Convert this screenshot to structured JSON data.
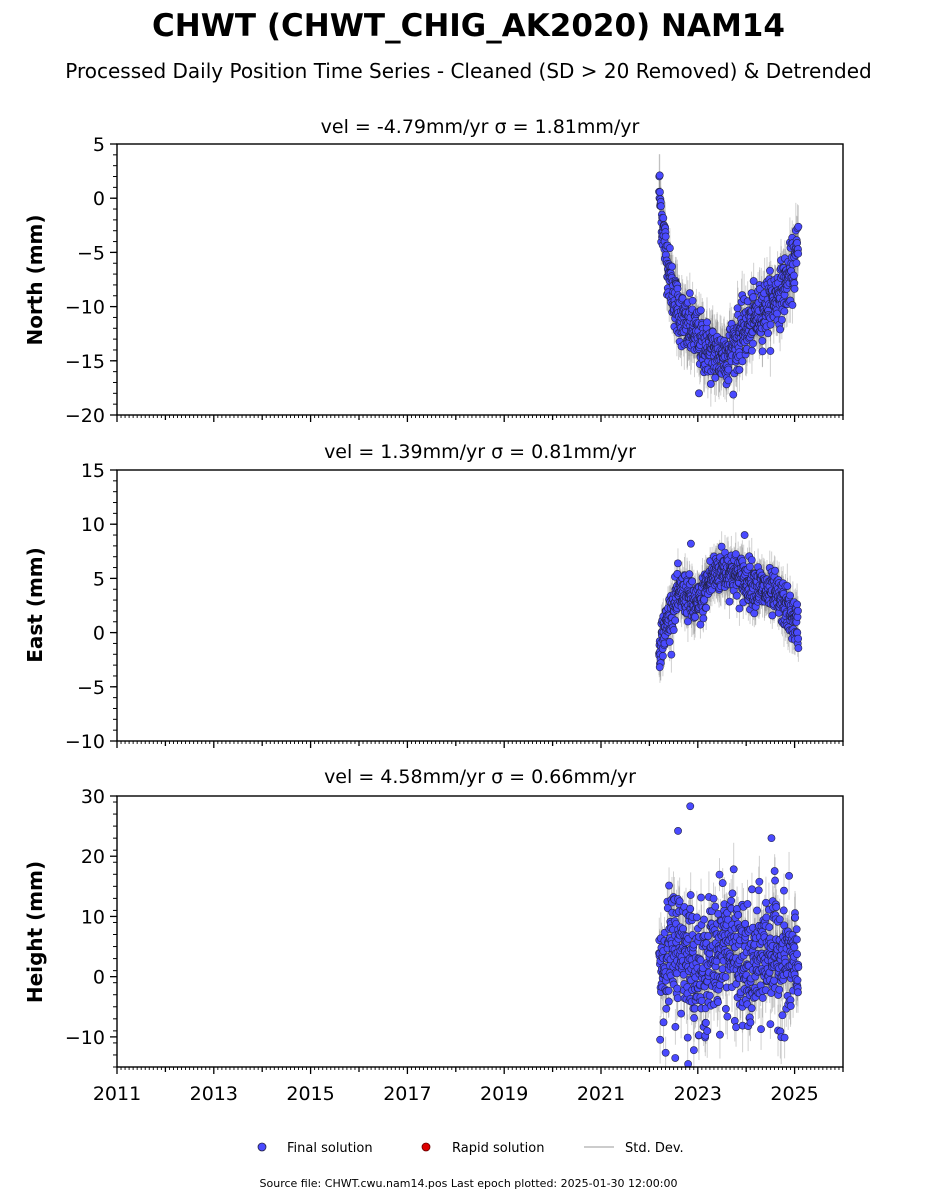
{
  "figure": {
    "title": "CHWT (CHWT_CHIG_AK2020) NAM14",
    "subtitle": "Processed Daily Position Time Series - Cleaned (SD > 20 Removed) & Detrended",
    "footer": "Source file: CHWT.cwu.nam14.pos  Last epoch plotted: 2025-01-30 12:00:00"
  },
  "legend": {
    "items": [
      {
        "label": "Final solution",
        "color": "#4a4aff",
        "marker": "circle"
      },
      {
        "label": "Rapid solution",
        "color": "#dd0000",
        "marker": "circle"
      },
      {
        "label": "Std. Dev.",
        "color": "#cccccc",
        "marker": "line"
      }
    ]
  },
  "colors": {
    "marker_fill": "#4a4aff",
    "marker_edge": "#222244",
    "errorbar": "#7a7a7a"
  },
  "chart_data": [
    {
      "type": "scatter",
      "panel": "north",
      "title": "vel = -4.79mm/yr   σ = 1.81mm/yr",
      "ylabel": "North (mm)",
      "xlabel": "",
      "xlim": [
        "2011-01-01",
        "2026-01-01"
      ],
      "ylim": [
        -20,
        5
      ],
      "yticks": [
        5,
        0,
        -5,
        -10,
        -15,
        -20
      ],
      "ytick_labels": [
        "5",
        "0",
        "−5",
        "−10",
        "−15",
        "−20"
      ],
      "show_xtick_labels": false,
      "x": [
        "2022-03-15",
        "2022-04-01",
        "2022-05-01",
        "2022-06-01",
        "2022-07-01",
        "2022-08-01",
        "2022-09-01",
        "2022-10-01",
        "2022-11-01",
        "2022-12-01",
        "2023-01-01",
        "2023-02-01",
        "2023-03-01",
        "2023-04-01",
        "2023-05-01",
        "2023-06-01",
        "2023-07-01",
        "2023-08-01",
        "2023-09-01",
        "2023-10-01",
        "2023-11-01",
        "2023-12-01",
        "2024-01-01",
        "2024-02-01",
        "2024-03-01",
        "2024-04-01",
        "2024-05-01",
        "2024-06-01",
        "2024-07-01",
        "2024-08-01",
        "2024-09-01",
        "2024-10-01",
        "2024-11-01",
        "2024-12-01",
        "2025-01-01",
        "2025-01-30"
      ],
      "y": [
        1.0,
        -1.5,
        -4.5,
        -7.0,
        -9.0,
        -10.2,
        -11.0,
        -11.8,
        -12.0,
        -12.3,
        -12.8,
        -13.3,
        -13.8,
        -14.1,
        -14.3,
        -14.5,
        -14.6,
        -14.4,
        -14.0,
        -13.5,
        -13.0,
        -12.5,
        -12.0,
        -11.6,
        -11.2,
        -10.8,
        -10.4,
        -10.0,
        -9.7,
        -9.3,
        -8.9,
        -8.4,
        -7.8,
        -7.0,
        -6.0,
        -4.5
      ],
      "scatter_sd": 1.3,
      "std_dev": 2.0,
      "outliers": [
        {
          "x": "2023-01-10",
          "y": -18.0
        },
        {
          "x": "2023-08-20",
          "y": -16.8
        }
      ]
    },
    {
      "type": "scatter",
      "panel": "east",
      "title": "vel = 1.39mm/yr   σ = 0.81mm/yr",
      "ylabel": "East (mm)",
      "xlabel": "",
      "xlim": [
        "2011-01-01",
        "2026-01-01"
      ],
      "ylim": [
        -10,
        15
      ],
      "yticks": [
        15,
        10,
        5,
        0,
        -5,
        -10
      ],
      "ytick_labels": [
        "15",
        "10",
        "5",
        "0",
        "−5",
        "−10"
      ],
      "show_xtick_labels": false,
      "x": [
        "2022-03-15",
        "2022-04-01",
        "2022-05-01",
        "2022-06-01",
        "2022-07-01",
        "2022-08-01",
        "2022-09-01",
        "2022-10-01",
        "2022-11-01",
        "2022-12-01",
        "2023-01-01",
        "2023-02-01",
        "2023-03-01",
        "2023-04-01",
        "2023-05-01",
        "2023-06-01",
        "2023-07-01",
        "2023-08-01",
        "2023-09-01",
        "2023-10-01",
        "2023-11-01",
        "2023-12-01",
        "2024-01-01",
        "2024-02-01",
        "2024-03-01",
        "2024-04-01",
        "2024-05-01",
        "2024-06-01",
        "2024-07-01",
        "2024-08-01",
        "2024-09-01",
        "2024-10-01",
        "2024-11-01",
        "2024-12-01",
        "2025-01-01",
        "2025-01-30"
      ],
      "y": [
        -1.5,
        -0.5,
        0.5,
        1.5,
        2.5,
        3.2,
        3.5,
        3.6,
        3.0,
        2.5,
        2.5,
        3.0,
        4.0,
        4.8,
        5.3,
        5.6,
        5.8,
        5.8,
        5.7,
        5.5,
        5.2,
        5.0,
        4.8,
        4.6,
        4.4,
        4.2,
        4.0,
        3.8,
        3.6,
        3.4,
        3.1,
        2.8,
        2.2,
        1.6,
        1.0,
        0.5
      ],
      "scatter_sd": 1.0,
      "std_dev": 1.6,
      "outliers": [
        {
          "x": "2022-11-10",
          "y": 8.2
        },
        {
          "x": "2023-12-20",
          "y": 9.0
        },
        {
          "x": "2022-03-20",
          "y": -3.2
        }
      ]
    },
    {
      "type": "scatter",
      "panel": "height",
      "title": "vel = 4.58mm/yr   σ = 0.66mm/yr",
      "ylabel": "Height (mm)",
      "xlabel": "",
      "xlim": [
        "2011-01-01",
        "2026-01-01"
      ],
      "ylim": [
        -15,
        30
      ],
      "yticks": [
        30,
        20,
        10,
        0,
        -10
      ],
      "ytick_labels": [
        "30",
        "20",
        "10",
        "0",
        "−10"
      ],
      "show_xtick_labels": true,
      "xticks": [
        "2011",
        "2013",
        "2015",
        "2017",
        "2019",
        "2021",
        "2023",
        "2025"
      ],
      "x": [
        "2022-03-15",
        "2022-04-01",
        "2022-05-01",
        "2022-06-01",
        "2022-07-01",
        "2022-08-01",
        "2022-09-01",
        "2022-10-01",
        "2022-11-01",
        "2022-12-01",
        "2023-01-01",
        "2023-02-01",
        "2023-03-01",
        "2023-04-01",
        "2023-05-01",
        "2023-06-01",
        "2023-07-01",
        "2023-08-01",
        "2023-09-01",
        "2023-10-01",
        "2023-11-01",
        "2023-12-01",
        "2024-01-01",
        "2024-02-01",
        "2024-03-01",
        "2024-04-01",
        "2024-05-01",
        "2024-06-01",
        "2024-07-01",
        "2024-08-01",
        "2024-09-01",
        "2024-10-01",
        "2024-11-01",
        "2024-12-01",
        "2025-01-01",
        "2025-01-30"
      ],
      "y": [
        1.0,
        2.0,
        3.0,
        4.0,
        4.5,
        5.0,
        5.0,
        4.5,
        3.5,
        2.0,
        0.5,
        0.0,
        1.0,
        2.5,
        3.5,
        4.5,
        5.5,
        5.5,
        5.0,
        4.0,
        3.0,
        2.0,
        1.0,
        0.5,
        1.5,
        2.5,
        3.5,
        4.0,
        4.5,
        4.0,
        3.5,
        3.0,
        2.5,
        2.0,
        1.5,
        1.0
      ],
      "scatter_sd": 5.0,
      "std_dev": 3.5,
      "outliers": [
        {
          "x": "2022-11-05",
          "y": 28.3
        },
        {
          "x": "2022-08-05",
          "y": 24.2
        },
        {
          "x": "2024-07-10",
          "y": 23.0
        },
        {
          "x": "2022-07-15",
          "y": -13.5
        },
        {
          "x": "2022-10-20",
          "y": -14.5
        }
      ]
    }
  ]
}
